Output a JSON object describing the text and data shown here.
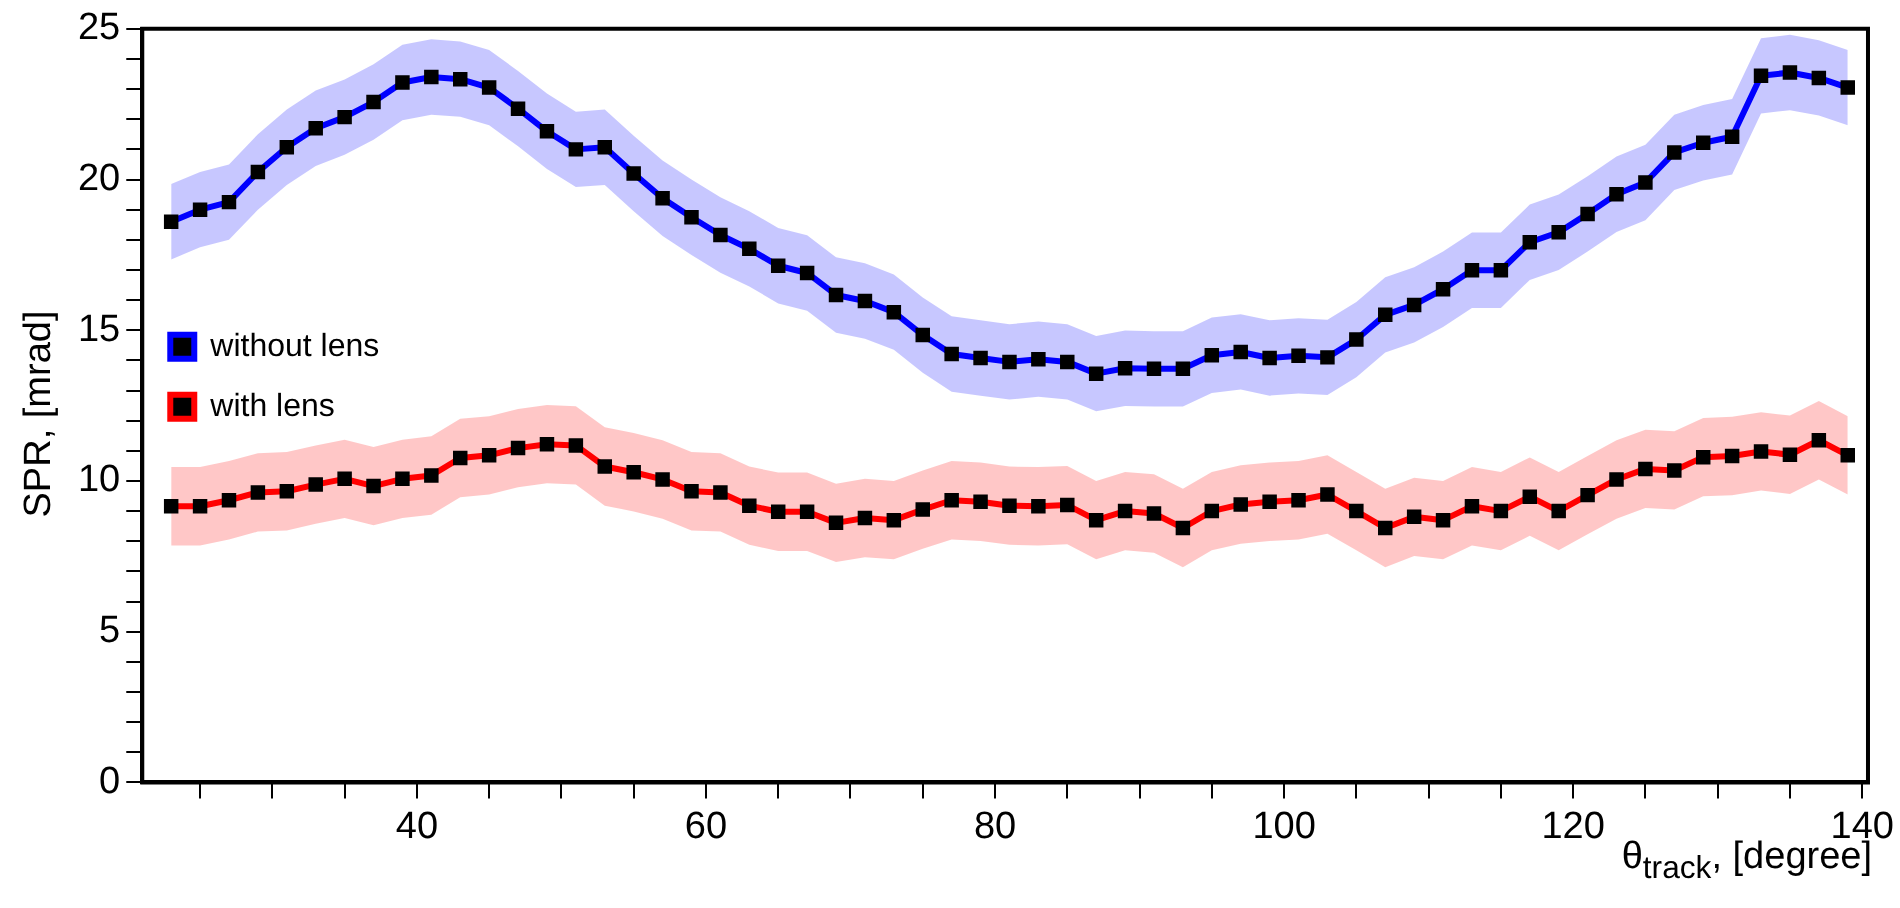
{
  "chart_data": {
    "type": "line",
    "xlabel": "θ$_{track}$, [degree]",
    "ylabel": "SPR, [mrad]",
    "x": [
      23,
      25,
      27,
      29,
      31,
      33,
      35,
      37,
      39,
      41,
      43,
      45,
      47,
      49,
      51,
      53,
      55,
      57,
      59,
      61,
      63,
      65,
      67,
      69,
      71,
      73,
      75,
      77,
      79,
      81,
      83,
      85,
      87,
      89,
      91,
      93,
      95,
      97,
      99,
      101,
      103,
      105,
      107,
      109,
      111,
      113,
      115,
      117,
      119,
      121,
      123,
      125,
      127,
      129,
      131,
      133,
      135,
      137,
      139
    ],
    "xlim": [
      21,
      140.4
    ],
    "xticks": [
      {
        "value": 25,
        "label": null
      },
      {
        "value": 30,
        "label": null
      },
      {
        "value": 35,
        "label": null
      },
      40,
      {
        "value": 45,
        "label": null
      },
      {
        "value": 50,
        "label": null
      },
      {
        "value": 55,
        "label": null
      },
      60,
      {
        "value": 65,
        "label": null
      },
      {
        "value": 70,
        "label": null
      },
      {
        "value": 75,
        "label": null
      },
      80,
      {
        "value": 85,
        "label": null
      },
      {
        "value": 90,
        "label": null
      },
      {
        "value": 95,
        "label": null
      },
      100,
      {
        "value": 105,
        "label": null
      },
      {
        "value": 110,
        "label": null
      },
      {
        "value": 115,
        "label": null
      },
      120,
      {
        "value": 125,
        "label": null
      },
      {
        "value": 130,
        "label": null
      },
      {
        "value": 135,
        "label": null
      },
      140
    ],
    "ylim": [
      0,
      25
    ],
    "yticks": [
      0,
      {
        "value": 1,
        "label": null
      },
      {
        "value": 2,
        "label": null
      },
      {
        "value": 3,
        "label": null
      },
      {
        "value": 4,
        "label": null
      },
      5,
      {
        "value": 6,
        "label": null
      },
      {
        "value": 7,
        "label": null
      },
      {
        "value": 8,
        "label": null
      },
      {
        "value": 9,
        "label": null
      },
      10,
      {
        "value": 11,
        "label": null
      },
      {
        "value": 12,
        "label": null
      },
      {
        "value": 13,
        "label": null
      },
      {
        "value": 14,
        "label": null
      },
      15,
      {
        "value": 16,
        "label": null
      },
      {
        "value": 17,
        "label": null
      },
      {
        "value": 18,
        "label": null
      },
      {
        "value": 19,
        "label": null
      },
      20,
      {
        "value": 21,
        "label": null
      },
      {
        "value": 22,
        "label": null
      },
      {
        "value": 23,
        "label": null
      },
      {
        "value": 24,
        "label": null
      },
      25
    ],
    "grid": false,
    "legend": "top",
    "marker": "square",
    "line_style": "solid",
    "series": [
      {
        "name": "without lens",
        "color": "#0000ff",
        "values": [
          18.6,
          19.0,
          19.25,
          20.25,
          21.07,
          21.7,
          22.07,
          22.57,
          23.22,
          23.4,
          23.33,
          23.05,
          22.35,
          21.6,
          21.0,
          21.07,
          20.2,
          19.38,
          18.75,
          18.16,
          17.7,
          17.14,
          16.9,
          16.17,
          15.97,
          15.6,
          14.84,
          14.21,
          14.08,
          13.95,
          14.04,
          13.95,
          13.56,
          13.74,
          13.72,
          13.72,
          14.17,
          14.28,
          14.08,
          14.15,
          14.1,
          14.69,
          15.51,
          15.84,
          16.36,
          16.99,
          16.99,
          17.92,
          18.25,
          18.86,
          19.51,
          19.9,
          20.9,
          21.22,
          21.42,
          23.44,
          23.55,
          23.37,
          23.05
        ],
        "lower": [
          17.35,
          17.75,
          18.0,
          19.0,
          19.82,
          20.45,
          20.82,
          21.32,
          21.97,
          22.15,
          22.08,
          21.8,
          21.1,
          20.35,
          19.75,
          19.82,
          18.95,
          18.13,
          17.5,
          16.91,
          16.45,
          15.89,
          15.65,
          14.92,
          14.72,
          14.35,
          13.59,
          12.96,
          12.83,
          12.7,
          12.79,
          12.7,
          12.31,
          12.49,
          12.47,
          12.47,
          12.92,
          13.03,
          12.83,
          12.9,
          12.85,
          13.44,
          14.26,
          14.59,
          15.11,
          15.74,
          15.74,
          16.67,
          17.0,
          17.61,
          18.26,
          18.65,
          19.65,
          19.97,
          20.17,
          22.19,
          22.3,
          22.12,
          21.8
        ],
        "upper": [
          19.85,
          20.25,
          20.5,
          21.5,
          22.32,
          22.95,
          23.32,
          23.82,
          24.47,
          24.65,
          24.58,
          24.3,
          23.6,
          22.85,
          22.25,
          22.32,
          21.45,
          20.63,
          20.0,
          19.41,
          18.95,
          18.39,
          18.15,
          17.42,
          17.22,
          16.85,
          16.09,
          15.46,
          15.33,
          15.2,
          15.29,
          15.2,
          14.81,
          14.99,
          14.97,
          14.97,
          15.42,
          15.53,
          15.33,
          15.4,
          15.35,
          15.94,
          16.76,
          17.09,
          17.61,
          18.24,
          18.24,
          19.17,
          19.5,
          20.11,
          20.76,
          21.15,
          22.15,
          22.47,
          22.67,
          24.69,
          24.8,
          24.62,
          24.3
        ]
      },
      {
        "name": "with lens",
        "color": "#ff0000",
        "values": [
          9.16,
          9.16,
          9.36,
          9.62,
          9.66,
          9.88,
          10.07,
          9.83,
          10.07,
          10.18,
          10.76,
          10.85,
          11.09,
          11.22,
          11.18,
          10.48,
          10.29,
          10.05,
          9.66,
          9.62,
          9.18,
          8.98,
          8.98,
          8.61,
          8.77,
          8.7,
          9.05,
          9.36,
          9.31,
          9.18,
          9.16,
          9.2,
          8.7,
          9.0,
          8.92,
          8.44,
          9.0,
          9.22,
          9.31,
          9.36,
          9.55,
          9.0,
          8.44,
          8.81,
          8.7,
          9.16,
          9.0,
          9.48,
          9.0,
          9.53,
          10.05,
          10.4,
          10.35,
          10.79,
          10.83,
          10.98,
          10.87,
          11.35,
          10.85
        ],
        "lower": [
          7.86,
          7.86,
          8.06,
          8.32,
          8.36,
          8.58,
          8.77,
          8.53,
          8.77,
          8.88,
          9.46,
          9.55,
          9.79,
          9.92,
          9.88,
          9.18,
          8.99,
          8.75,
          8.36,
          8.32,
          7.88,
          7.68,
          7.68,
          7.31,
          7.47,
          7.4,
          7.75,
          8.06,
          8.01,
          7.88,
          7.86,
          7.9,
          7.4,
          7.7,
          7.62,
          7.14,
          7.7,
          7.92,
          8.01,
          8.06,
          8.25,
          7.7,
          7.14,
          7.51,
          7.4,
          7.86,
          7.7,
          8.18,
          7.7,
          8.23,
          8.75,
          9.1,
          9.05,
          9.49,
          9.53,
          9.68,
          9.57,
          10.05,
          9.55
        ],
        "upper": [
          10.46,
          10.46,
          10.66,
          10.92,
          10.96,
          11.18,
          11.37,
          11.13,
          11.37,
          11.48,
          12.06,
          12.15,
          12.39,
          12.52,
          12.48,
          11.78,
          11.59,
          11.35,
          10.96,
          10.92,
          10.48,
          10.28,
          10.28,
          9.91,
          10.07,
          10.0,
          10.35,
          10.66,
          10.61,
          10.48,
          10.46,
          10.5,
          10.0,
          10.3,
          10.22,
          9.74,
          10.3,
          10.52,
          10.61,
          10.66,
          10.85,
          10.3,
          9.74,
          10.11,
          10.0,
          10.46,
          10.3,
          10.78,
          10.3,
          10.83,
          11.35,
          11.7,
          11.65,
          12.09,
          12.13,
          12.28,
          12.17,
          12.65,
          12.15
        ]
      }
    ]
  }
}
